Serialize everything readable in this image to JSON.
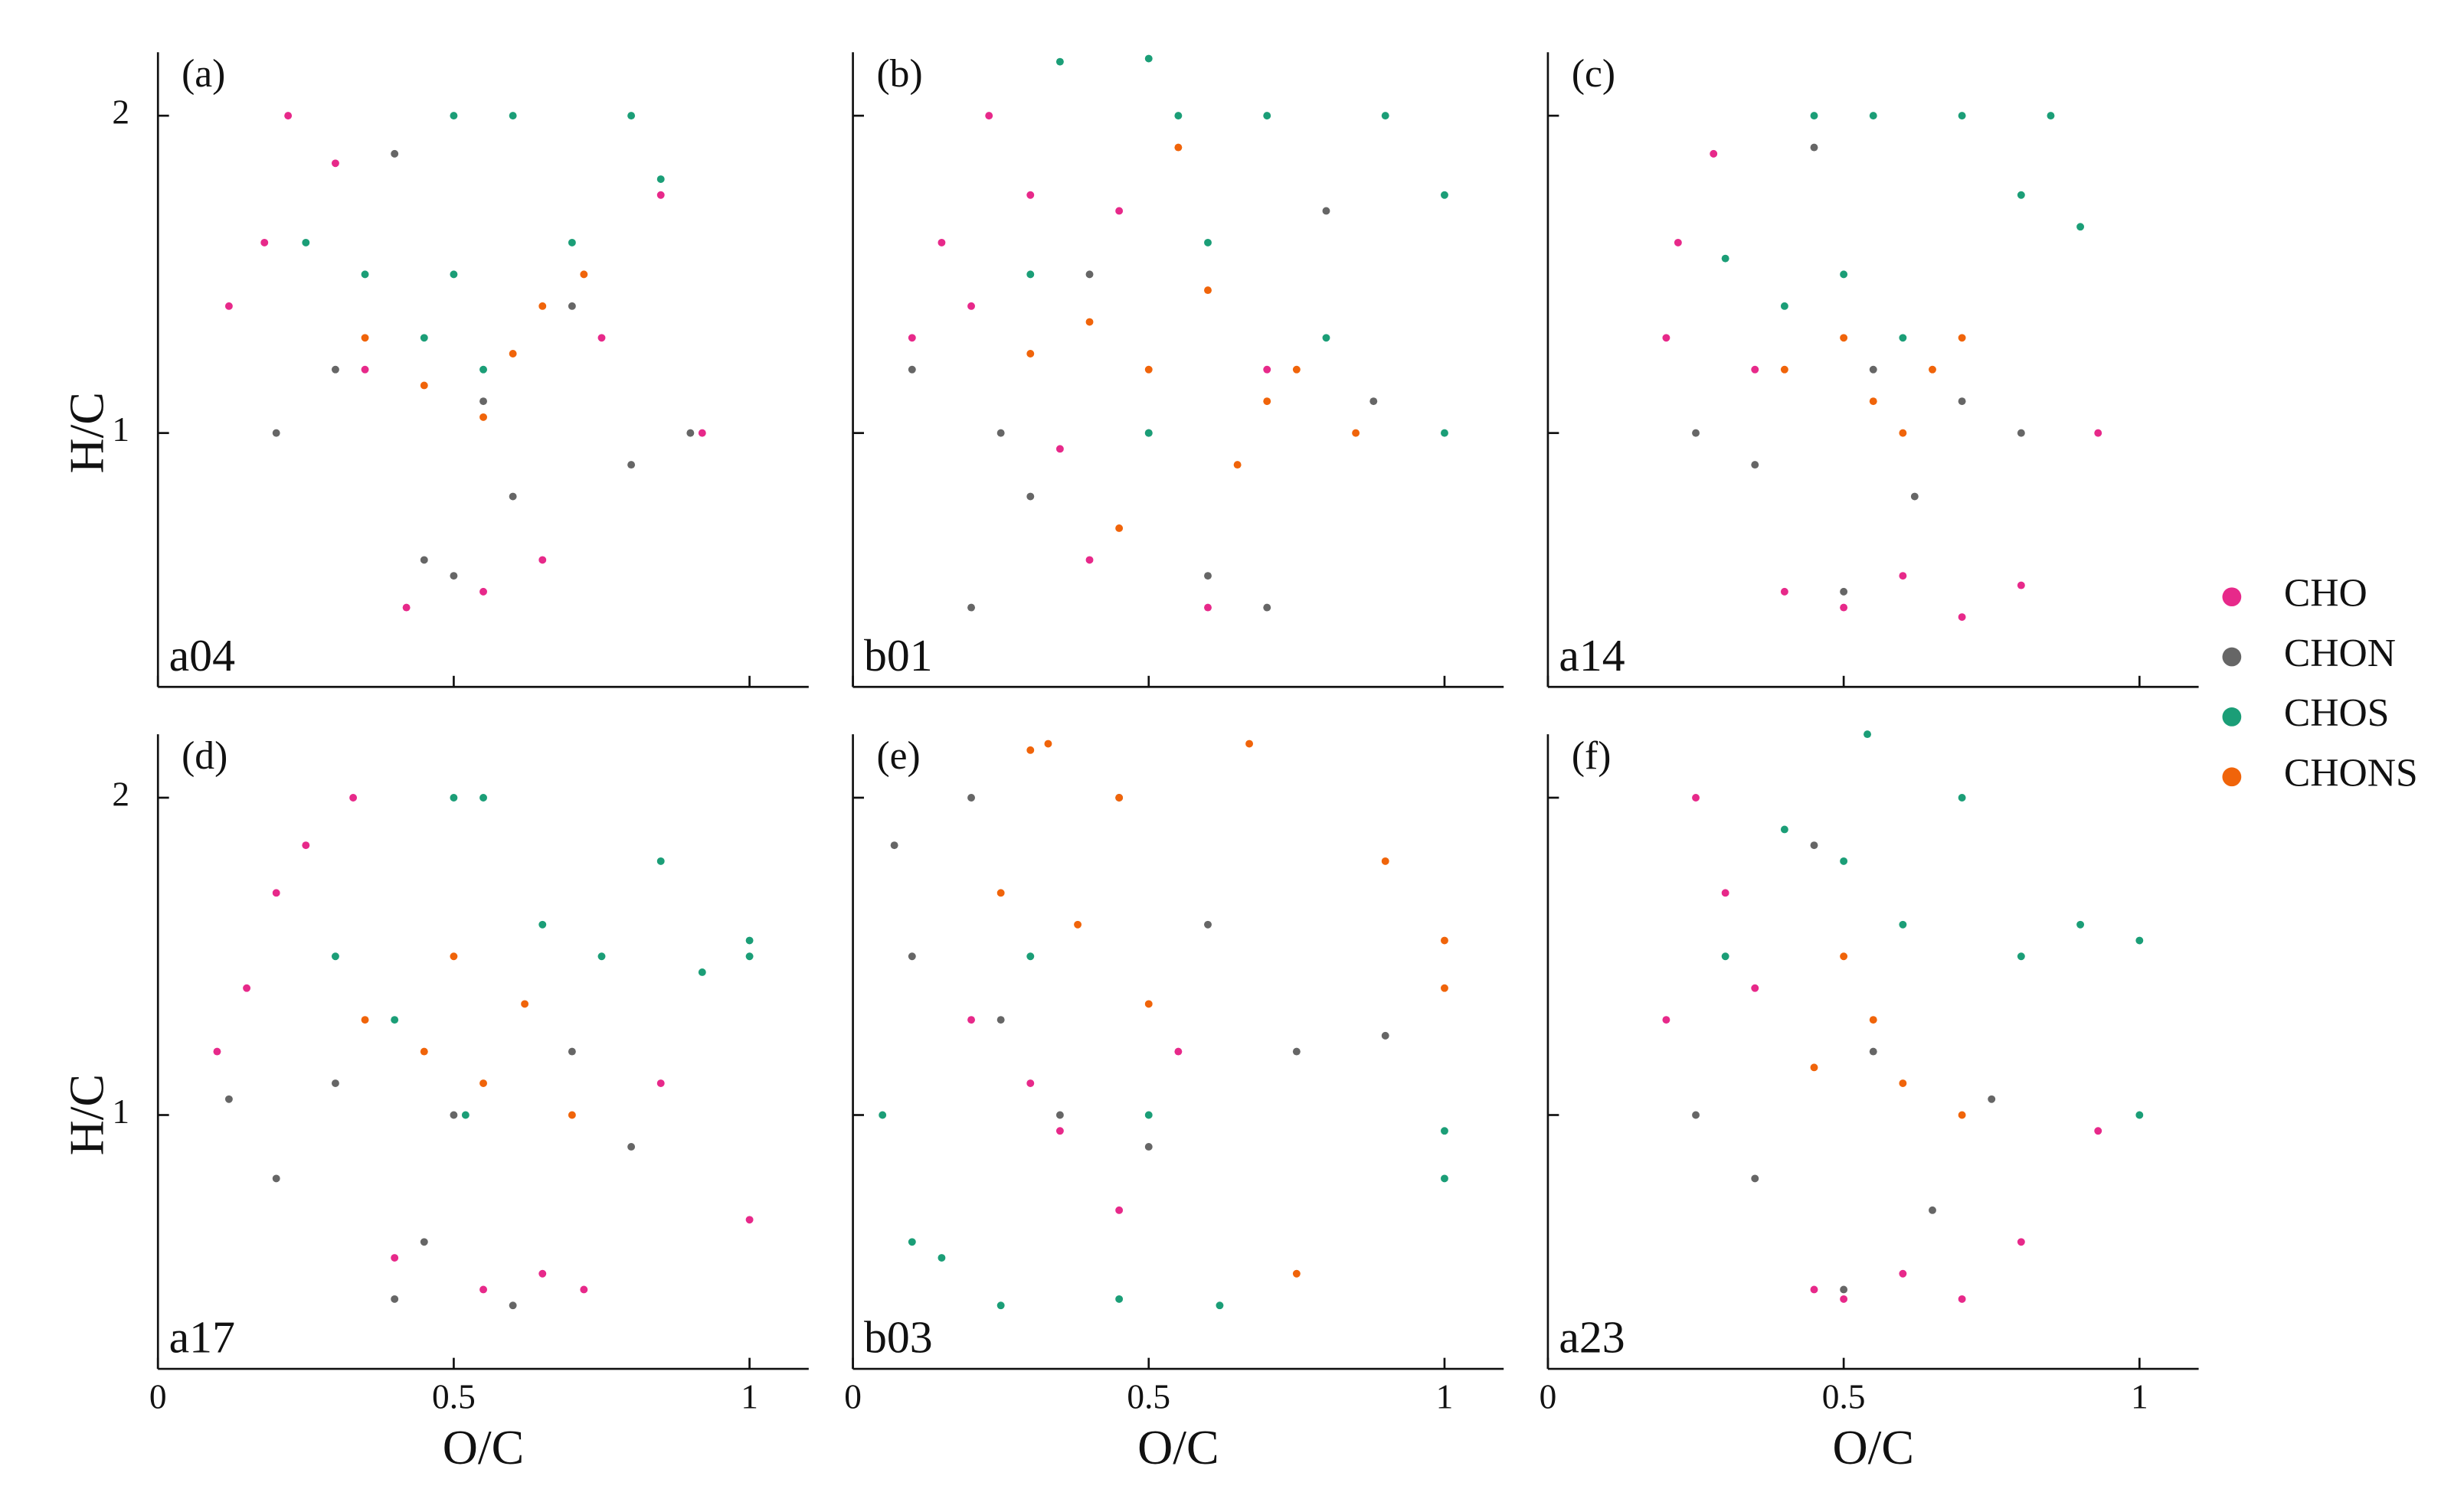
{
  "chart_data": [
    {
      "type": "scatter",
      "title": "(a)",
      "subtitle": "a04",
      "ylabel": "H/C",
      "xlim": [
        0,
        1.1
      ],
      "ylim": [
        0.2,
        2.2
      ],
      "xticks": [
        0,
        0.5,
        1
      ],
      "yticks": [
        1,
        2
      ],
      "series": [
        {
          "name": "CHO",
          "color": "#e7298a",
          "x": [
            0.12,
            0.18,
            0.22,
            0.3,
            0.35,
            0.42,
            0.55,
            0.65,
            0.75,
            0.85,
            0.92
          ],
          "values": [
            1.4,
            1.6,
            2.0,
            1.85,
            1.2,
            0.45,
            0.5,
            0.6,
            1.3,
            1.75,
            1.0
          ]
        },
        {
          "name": "CHON",
          "color": "#666666",
          "x": [
            0.2,
            0.3,
            0.4,
            0.45,
            0.5,
            0.55,
            0.6,
            0.7,
            0.8,
            0.9
          ],
          "values": [
            1.0,
            1.2,
            1.88,
            0.6,
            0.55,
            1.1,
            0.8,
            1.4,
            0.9,
            1.0
          ]
        },
        {
          "name": "CHOS",
          "color": "#1b9e77",
          "x": [
            0.25,
            0.35,
            0.45,
            0.5,
            0.5,
            0.55,
            0.6,
            0.7,
            0.8,
            0.85
          ],
          "values": [
            1.6,
            1.5,
            1.3,
            2.0,
            1.5,
            1.2,
            2.0,
            1.6,
            2.0,
            1.8
          ]
        },
        {
          "name": "CHONS",
          "color": "#f0640a",
          "x": [
            0.35,
            0.45,
            0.55,
            0.6,
            0.65,
            0.72
          ],
          "values": [
            1.3,
            1.15,
            1.05,
            1.25,
            1.4,
            1.5
          ]
        }
      ]
    },
    {
      "type": "scatter",
      "title": "(b)",
      "subtitle": "b01",
      "xlim": [
        0,
        1.1
      ],
      "ylim": [
        0.2,
        2.2
      ],
      "xticks": [
        0,
        0.5,
        1
      ],
      "yticks": [
        1,
        2
      ],
      "series": [
        {
          "name": "CHO",
          "color": "#e7298a",
          "x": [
            0.1,
            0.15,
            0.2,
            0.23,
            0.3,
            0.35,
            0.4,
            0.45,
            0.6,
            0.7
          ],
          "values": [
            1.3,
            1.6,
            1.4,
            2.0,
            1.75,
            0.95,
            0.6,
            1.7,
            0.45,
            1.2
          ]
        },
        {
          "name": "CHON",
          "color": "#666666",
          "x": [
            0.1,
            0.2,
            0.25,
            0.3,
            0.4,
            0.5,
            0.6,
            0.7,
            0.8,
            0.88
          ],
          "values": [
            1.2,
            0.45,
            1.0,
            0.8,
            1.5,
            1.0,
            0.55,
            0.45,
            1.7,
            1.1
          ]
        },
        {
          "name": "CHOS",
          "color": "#1b9e77",
          "x": [
            0.3,
            0.35,
            0.5,
            0.5,
            0.55,
            0.6,
            0.7,
            0.8,
            0.9,
            1.0,
            1.0
          ],
          "values": [
            1.5,
            2.17,
            2.18,
            1.0,
            2.0,
            1.6,
            2.0,
            1.3,
            2.0,
            1.75,
            1.0
          ]
        },
        {
          "name": "CHONS",
          "color": "#f0640a",
          "x": [
            0.3,
            0.4,
            0.45,
            0.5,
            0.55,
            0.6,
            0.65,
            0.7,
            0.75,
            0.85
          ],
          "values": [
            1.25,
            1.35,
            0.7,
            1.2,
            1.9,
            1.45,
            0.9,
            1.1,
            1.2,
            1.0
          ]
        }
      ]
    },
    {
      "type": "scatter",
      "title": "(c)",
      "subtitle": "a14",
      "xlim": [
        0,
        1.1
      ],
      "ylim": [
        0.2,
        2.2
      ],
      "xticks": [
        0,
        0.5,
        1
      ],
      "yticks": [
        1,
        2
      ],
      "series": [
        {
          "name": "CHO",
          "color": "#e7298a",
          "x": [
            0.2,
            0.22,
            0.28,
            0.35,
            0.4,
            0.5,
            0.6,
            0.7,
            0.8,
            0.93
          ],
          "values": [
            1.3,
            1.6,
            1.88,
            1.2,
            0.5,
            0.45,
            0.55,
            0.42,
            0.52,
            1.0
          ]
        },
        {
          "name": "CHON",
          "color": "#666666",
          "x": [
            0.25,
            0.35,
            0.45,
            0.5,
            0.55,
            0.62,
            0.7,
            0.8
          ],
          "values": [
            1.0,
            0.9,
            1.9,
            0.5,
            1.2,
            0.8,
            1.1,
            1.0
          ]
        },
        {
          "name": "CHOS",
          "color": "#1b9e77",
          "x": [
            0.3,
            0.4,
            0.45,
            0.5,
            0.55,
            0.6,
            0.7,
            0.8,
            0.85,
            0.9
          ],
          "values": [
            1.55,
            1.4,
            2.0,
            1.5,
            2.0,
            1.3,
            2.0,
            1.75,
            2.0,
            1.65
          ]
        },
        {
          "name": "CHONS",
          "color": "#f0640a",
          "x": [
            0.4,
            0.5,
            0.55,
            0.6,
            0.65,
            0.7
          ],
          "values": [
            1.2,
            1.3,
            1.1,
            1.0,
            1.2,
            1.3
          ]
        }
      ]
    },
    {
      "type": "scatter",
      "title": "(d)",
      "subtitle": "a17",
      "xlabel": "O/C",
      "ylabel": "H/C",
      "xlim": [
        0,
        1.1
      ],
      "ylim": [
        0.2,
        2.2
      ],
      "xticks": [
        0,
        0.5,
        1
      ],
      "yticks": [
        1,
        2
      ],
      "series": [
        {
          "name": "CHO",
          "color": "#e7298a",
          "x": [
            0.1,
            0.15,
            0.2,
            0.25,
            0.33,
            0.4,
            0.55,
            0.65,
            0.72,
            0.85,
            1.0
          ],
          "values": [
            1.2,
            1.4,
            1.7,
            1.85,
            2.0,
            0.55,
            0.45,
            0.5,
            0.45,
            1.1,
            0.67
          ]
        },
        {
          "name": "CHON",
          "color": "#666666",
          "x": [
            0.12,
            0.2,
            0.3,
            0.4,
            0.45,
            0.5,
            0.6,
            0.7,
            0.8
          ],
          "values": [
            1.05,
            0.8,
            1.1,
            0.42,
            0.6,
            1.0,
            0.4,
            1.2,
            0.9
          ]
        },
        {
          "name": "CHOS",
          "color": "#1b9e77",
          "x": [
            0.3,
            0.4,
            0.5,
            0.52,
            0.55,
            0.65,
            0.75,
            0.85,
            0.92,
            1.0,
            1.0
          ],
          "values": [
            1.5,
            1.3,
            2.0,
            1.0,
            2.0,
            1.6,
            1.5,
            1.8,
            1.45,
            1.55,
            1.5
          ]
        },
        {
          "name": "CHONS",
          "color": "#f0640a",
          "x": [
            0.35,
            0.45,
            0.5,
            0.55,
            0.62,
            0.7
          ],
          "values": [
            1.3,
            1.2,
            1.5,
            1.1,
            1.35,
            1.0
          ]
        }
      ]
    },
    {
      "type": "scatter",
      "title": "(e)",
      "subtitle": "b03",
      "xlabel": "O/C",
      "xlim": [
        0,
        1.1
      ],
      "ylim": [
        0.2,
        2.2
      ],
      "xticks": [
        0,
        0.5,
        1
      ],
      "yticks": [
        1,
        2
      ],
      "series": [
        {
          "name": "CHO",
          "color": "#e7298a",
          "x": [
            0.2,
            0.3,
            0.35,
            0.45,
            0.55
          ],
          "values": [
            1.3,
            1.1,
            0.95,
            0.7,
            1.2
          ]
        },
        {
          "name": "CHON",
          "color": "#666666",
          "x": [
            0.07,
            0.1,
            0.2,
            0.25,
            0.35,
            0.45,
            0.5,
            0.6,
            0.75,
            0.9
          ],
          "values": [
            1.85,
            1.5,
            2.0,
            1.3,
            1.0,
            2.0,
            0.9,
            1.6,
            1.2,
            1.25
          ]
        },
        {
          "name": "CHOS",
          "color": "#1b9e77",
          "x": [
            0.05,
            0.1,
            0.15,
            0.25,
            0.3,
            0.45,
            0.5,
            0.62,
            1.0,
            1.0
          ],
          "values": [
            1.0,
            0.6,
            0.55,
            0.4,
            1.5,
            0.42,
            1.0,
            0.4,
            0.8,
            0.95
          ]
        },
        {
          "name": "CHONS",
          "color": "#f0640a",
          "x": [
            0.25,
            0.3,
            0.33,
            0.38,
            0.45,
            0.5,
            0.67,
            0.75,
            0.9,
            1.0,
            1.0
          ],
          "values": [
            1.7,
            2.15,
            2.17,
            1.6,
            2.0,
            1.35,
            2.17,
            0.5,
            1.8,
            1.55,
            1.4
          ]
        }
      ]
    },
    {
      "type": "scatter",
      "title": "(f)",
      "subtitle": "a23",
      "xlabel": "O/C",
      "xlim": [
        0,
        1.1
      ],
      "ylim": [
        0.2,
        2.2
      ],
      "xticks": [
        0,
        0.5,
        1
      ],
      "yticks": [
        1,
        2
      ],
      "series": [
        {
          "name": "CHO",
          "color": "#e7298a",
          "x": [
            0.2,
            0.25,
            0.3,
            0.35,
            0.45,
            0.5,
            0.6,
            0.7,
            0.8,
            0.93
          ],
          "values": [
            1.3,
            2.0,
            1.7,
            1.4,
            0.45,
            0.42,
            0.5,
            0.42,
            0.6,
            0.95
          ]
        },
        {
          "name": "CHON",
          "color": "#666666",
          "x": [
            0.25,
            0.35,
            0.45,
            0.5,
            0.55,
            0.65,
            0.75
          ],
          "values": [
            1.0,
            0.8,
            1.85,
            0.45,
            1.2,
            0.7,
            1.05
          ]
        },
        {
          "name": "CHOS",
          "color": "#1b9e77",
          "x": [
            0.3,
            0.4,
            0.5,
            0.54,
            0.6,
            0.7,
            0.8,
            0.9,
            1.0,
            1.0
          ],
          "values": [
            1.5,
            1.9,
            1.8,
            2.2,
            1.6,
            2.0,
            1.5,
            1.6,
            1.55,
            1.0
          ]
        },
        {
          "name": "CHONS",
          "color": "#f0640a",
          "x": [
            0.45,
            0.5,
            0.55,
            0.6,
            0.7
          ],
          "values": [
            1.15,
            1.5,
            1.3,
            1.1,
            1.0
          ]
        }
      ]
    }
  ]
}
